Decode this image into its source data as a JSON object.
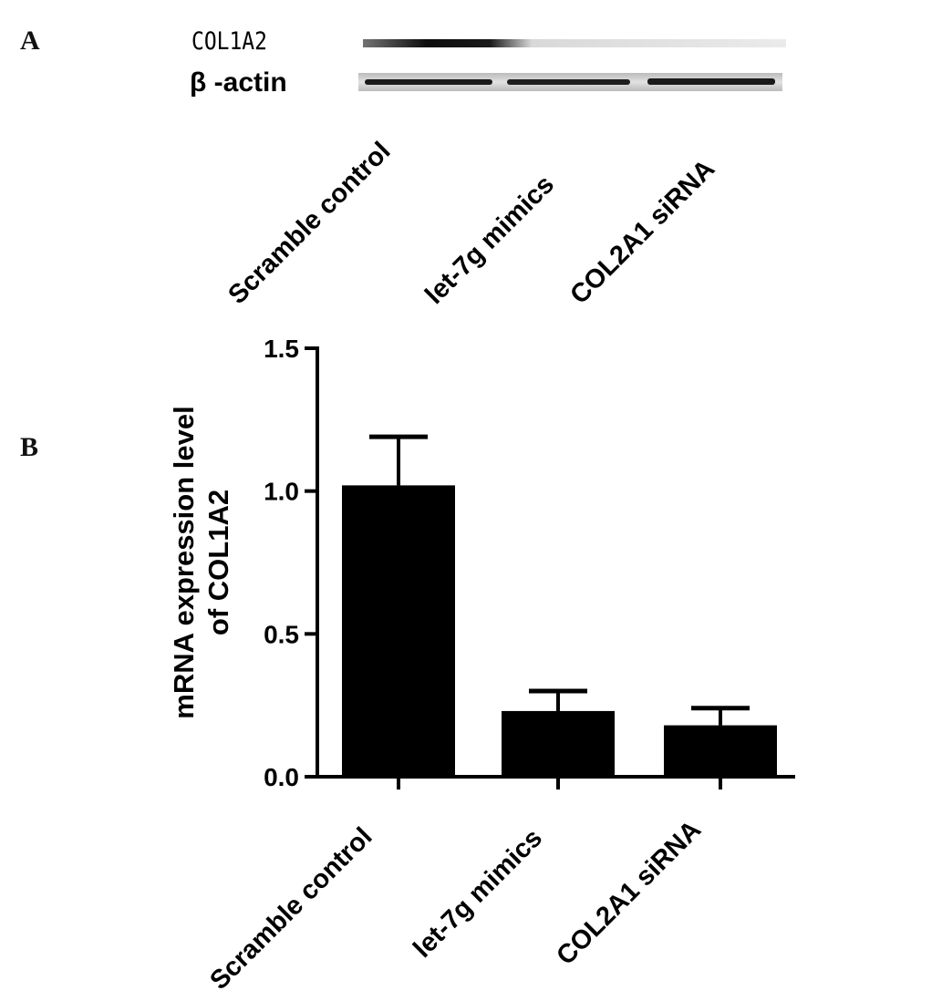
{
  "panel_a": {
    "letter": "A",
    "blot_rows": [
      {
        "label": "COL1A2",
        "band_intensity": [
          0.95,
          0.12,
          0.1
        ]
      },
      {
        "label": "β -actin",
        "band_intensity": [
          0.9,
          0.85,
          0.88
        ]
      }
    ],
    "lane_labels": [
      "Scramble control",
      "let-7g mimics",
      "COL2A1 siRNA"
    ]
  },
  "panel_b": {
    "letter": "B"
  },
  "chart_data": {
    "type": "bar",
    "categories": [
      "Scramble control",
      "let-7g mimics",
      "COL2A1 siRNA"
    ],
    "values": [
      1.02,
      0.23,
      0.18
    ],
    "error_upper": [
      1.19,
      0.3,
      0.24
    ],
    "ylabel_lines": [
      "mRNA expression level",
      "of COL1A2"
    ],
    "ylim": [
      0,
      1.5
    ],
    "yticks": [
      "0.0",
      "0.5",
      "1.0",
      "1.5"
    ],
    "tick_values": [
      0,
      0.5,
      1.0,
      1.5
    ],
    "bar_color": "#000000",
    "grid": false,
    "legend": "none"
  }
}
